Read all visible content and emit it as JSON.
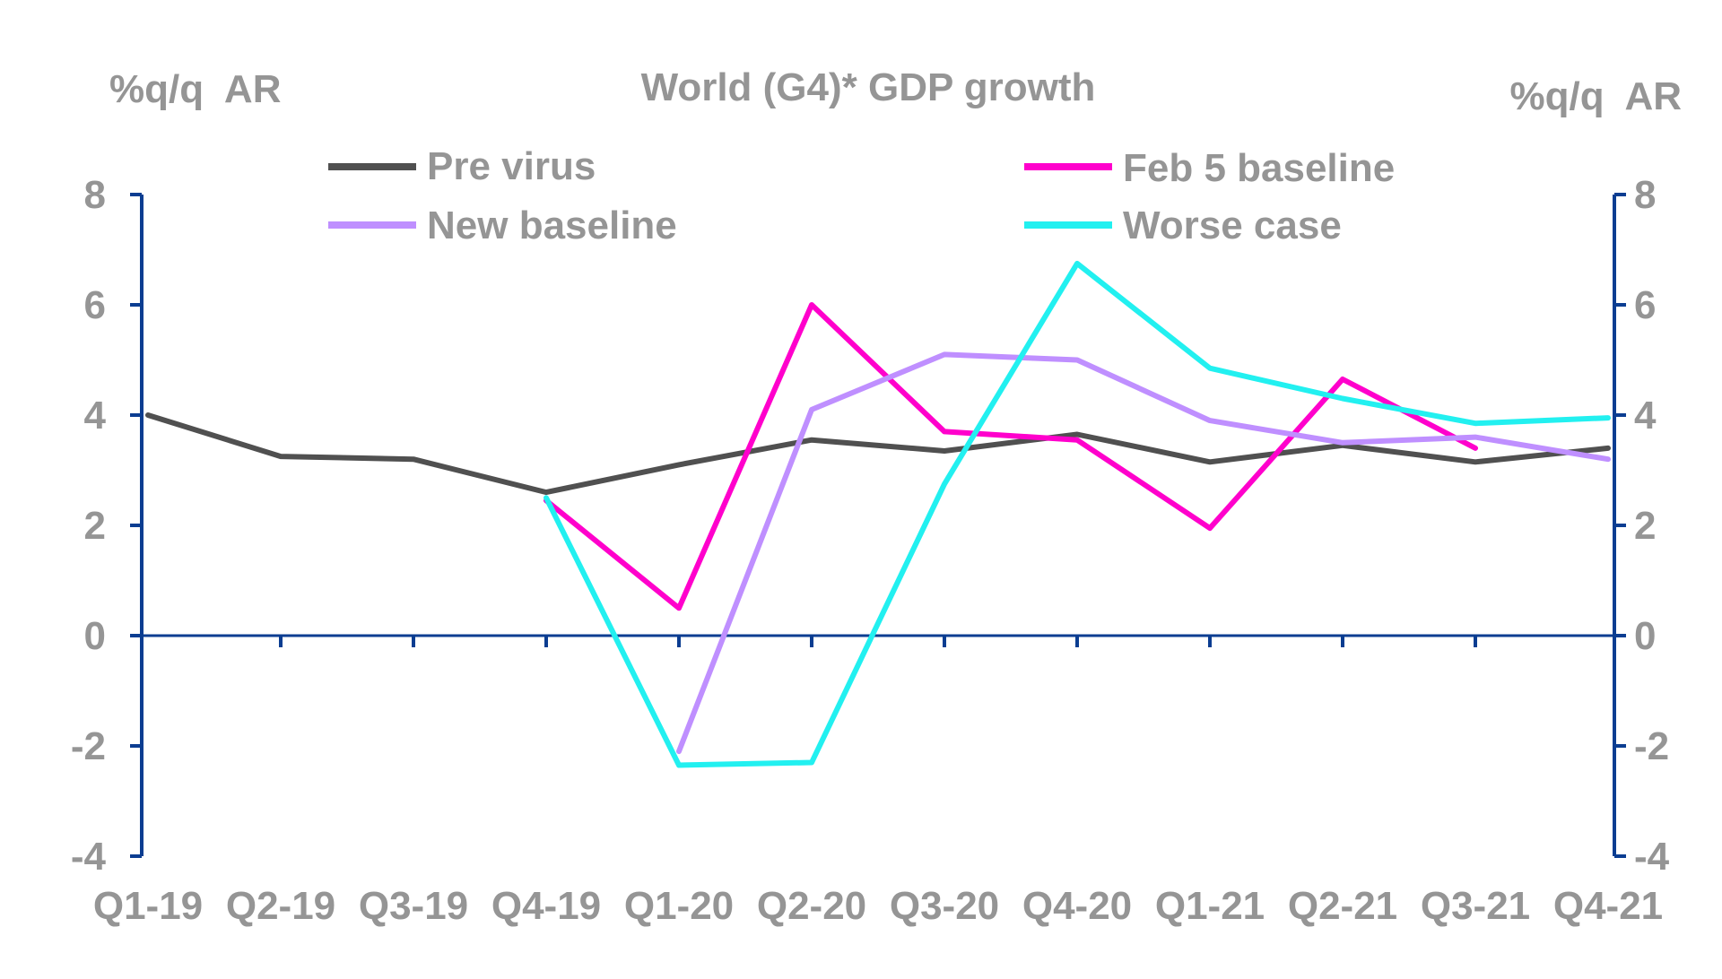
{
  "chart_data": {
    "type": "line",
    "title": "World (G4)* GDP growth",
    "ylabel_left": "%q/q  AR",
    "ylabel_right": "%q/q  AR",
    "ylim": [
      -4,
      8
    ],
    "yticks": [
      -4,
      -2,
      0,
      2,
      4,
      6,
      8
    ],
    "ytick_labels": [
      "-4",
      "-2",
      "0",
      "2",
      "4",
      "6",
      "8"
    ],
    "categories": [
      "Q1-19",
      "Q2-19",
      "Q3-19",
      "Q4-19",
      "Q1-20",
      "Q2-20",
      "Q3-20",
      "Q4-20",
      "Q1-21",
      "Q2-21",
      "Q3-21",
      "Q4-21"
    ],
    "legend_position": "top",
    "grid": false,
    "series": [
      {
        "name": "Pre virus",
        "color": "#505050",
        "values": [
          4.0,
          3.25,
          3.2,
          2.6,
          3.1,
          3.55,
          3.35,
          3.65,
          3.15,
          3.45,
          3.15,
          3.4
        ]
      },
      {
        "name": "Feb 5 baseline",
        "color": "#ff00cc",
        "values": [
          null,
          null,
          null,
          2.45,
          0.5,
          6.0,
          3.7,
          3.55,
          1.95,
          4.65,
          3.4,
          null
        ]
      },
      {
        "name": "New baseline",
        "color": "#bf8fff",
        "values": [
          null,
          null,
          null,
          null,
          -2.1,
          4.1,
          5.1,
          5.0,
          3.9,
          3.5,
          3.6,
          3.2
        ]
      },
      {
        "name": "Worse case",
        "color": "#22f0f0",
        "values": [
          null,
          null,
          null,
          2.5,
          -2.35,
          -2.3,
          2.75,
          6.75,
          4.85,
          4.3,
          3.85,
          3.95
        ]
      }
    ]
  }
}
